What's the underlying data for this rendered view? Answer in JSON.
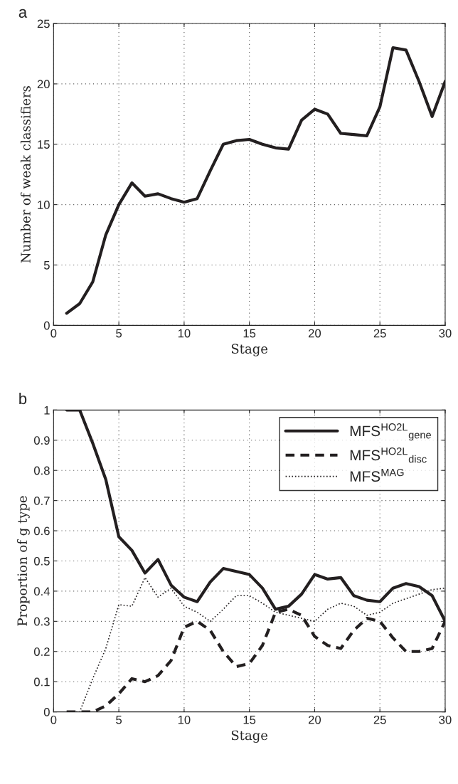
{
  "chart_data": [
    {
      "type": "line",
      "title": "a",
      "xlabel": "Stage",
      "ylabel": "Number of weak classifiers",
      "x": [
        1,
        2,
        3,
        4,
        5,
        6,
        7,
        8,
        9,
        10,
        11,
        12,
        13,
        14,
        15,
        16,
        17,
        18,
        19,
        20,
        21,
        22,
        23,
        24,
        25,
        26,
        27,
        28,
        29,
        30
      ],
      "series": [
        {
          "color": "#231f20",
          "line_style": "solid",
          "values": [
            1,
            1.8,
            3.6,
            7.5,
            10,
            11.8,
            10.7,
            10.9,
            10.5,
            10.2,
            10.5,
            12.8,
            15,
            15.3,
            15.4,
            15,
            14.7,
            14.6,
            17,
            17.9,
            17.5,
            15.9,
            15.8,
            15.7,
            18.1,
            23,
            22.8,
            20.2,
            17.3,
            20.2
          ]
        }
      ],
      "xlim": [
        0,
        30
      ],
      "ylim": [
        0,
        25
      ],
      "xticks": [
        0,
        5,
        10,
        15,
        20,
        25,
        30
      ],
      "yticks": [
        0,
        5,
        10,
        15,
        20,
        25
      ],
      "grid": true,
      "legend": false
    },
    {
      "type": "line",
      "title": "b",
      "xlabel": "Stage",
      "ylabel": "Proportion of g type",
      "x": [
        1,
        2,
        3,
        4,
        5,
        6,
        7,
        8,
        9,
        10,
        11,
        12,
        13,
        14,
        15,
        16,
        17,
        18,
        19,
        20,
        21,
        22,
        23,
        24,
        25,
        26,
        27,
        28,
        29,
        30
      ],
      "series": [
        {
          "name": "MFS$^{HO2L}$$_{gene}$",
          "color": "#231f20",
          "line_style": "solid",
          "values": [
            1,
            1,
            0.89,
            0.77,
            0.58,
            0.535,
            0.46,
            0.505,
            0.42,
            0.38,
            0.365,
            0.43,
            0.475,
            0.465,
            0.455,
            0.41,
            0.34,
            0.35,
            0.39,
            0.455,
            0.44,
            0.445,
            0.385,
            0.37,
            0.365,
            0.41,
            0.425,
            0.415,
            0.385,
            0.3
          ]
        },
        {
          "name": "MFS$^{HO2L}$$_{disc}$",
          "color": "#231f20",
          "line_style": "dashed",
          "values": [
            0,
            0,
            0,
            0.02,
            0.06,
            0.11,
            0.1,
            0.12,
            0.17,
            0.28,
            0.3,
            0.27,
            0.2,
            0.15,
            0.16,
            0.22,
            0.33,
            0.34,
            0.32,
            0.25,
            0.22,
            0.21,
            0.27,
            0.31,
            0.3,
            0.245,
            0.2,
            0.2,
            0.21,
            0.3
          ]
        },
        {
          "name": "MFS$^{MAG}$",
          "color": "#231f20",
          "line_style": "dotted",
          "values": [
            0,
            0,
            0.11,
            0.21,
            0.355,
            0.35,
            0.445,
            0.38,
            0.41,
            0.35,
            0.33,
            0.3,
            0.34,
            0.385,
            0.385,
            0.36,
            0.33,
            0.32,
            0.31,
            0.3,
            0.34,
            0.36,
            0.35,
            0.32,
            0.33,
            0.36,
            0.375,
            0.39,
            0.405,
            0.41
          ]
        }
      ],
      "xlim": [
        0,
        30
      ],
      "ylim": [
        0,
        1
      ],
      "xticks": [
        0,
        5,
        10,
        15,
        20,
        25,
        30
      ],
      "yticks": [
        0,
        0.1,
        0.2,
        0.3,
        0.4,
        0.5,
        0.6,
        0.7,
        0.8,
        0.9,
        1
      ],
      "grid": true,
      "legend": "top right"
    }
  ]
}
